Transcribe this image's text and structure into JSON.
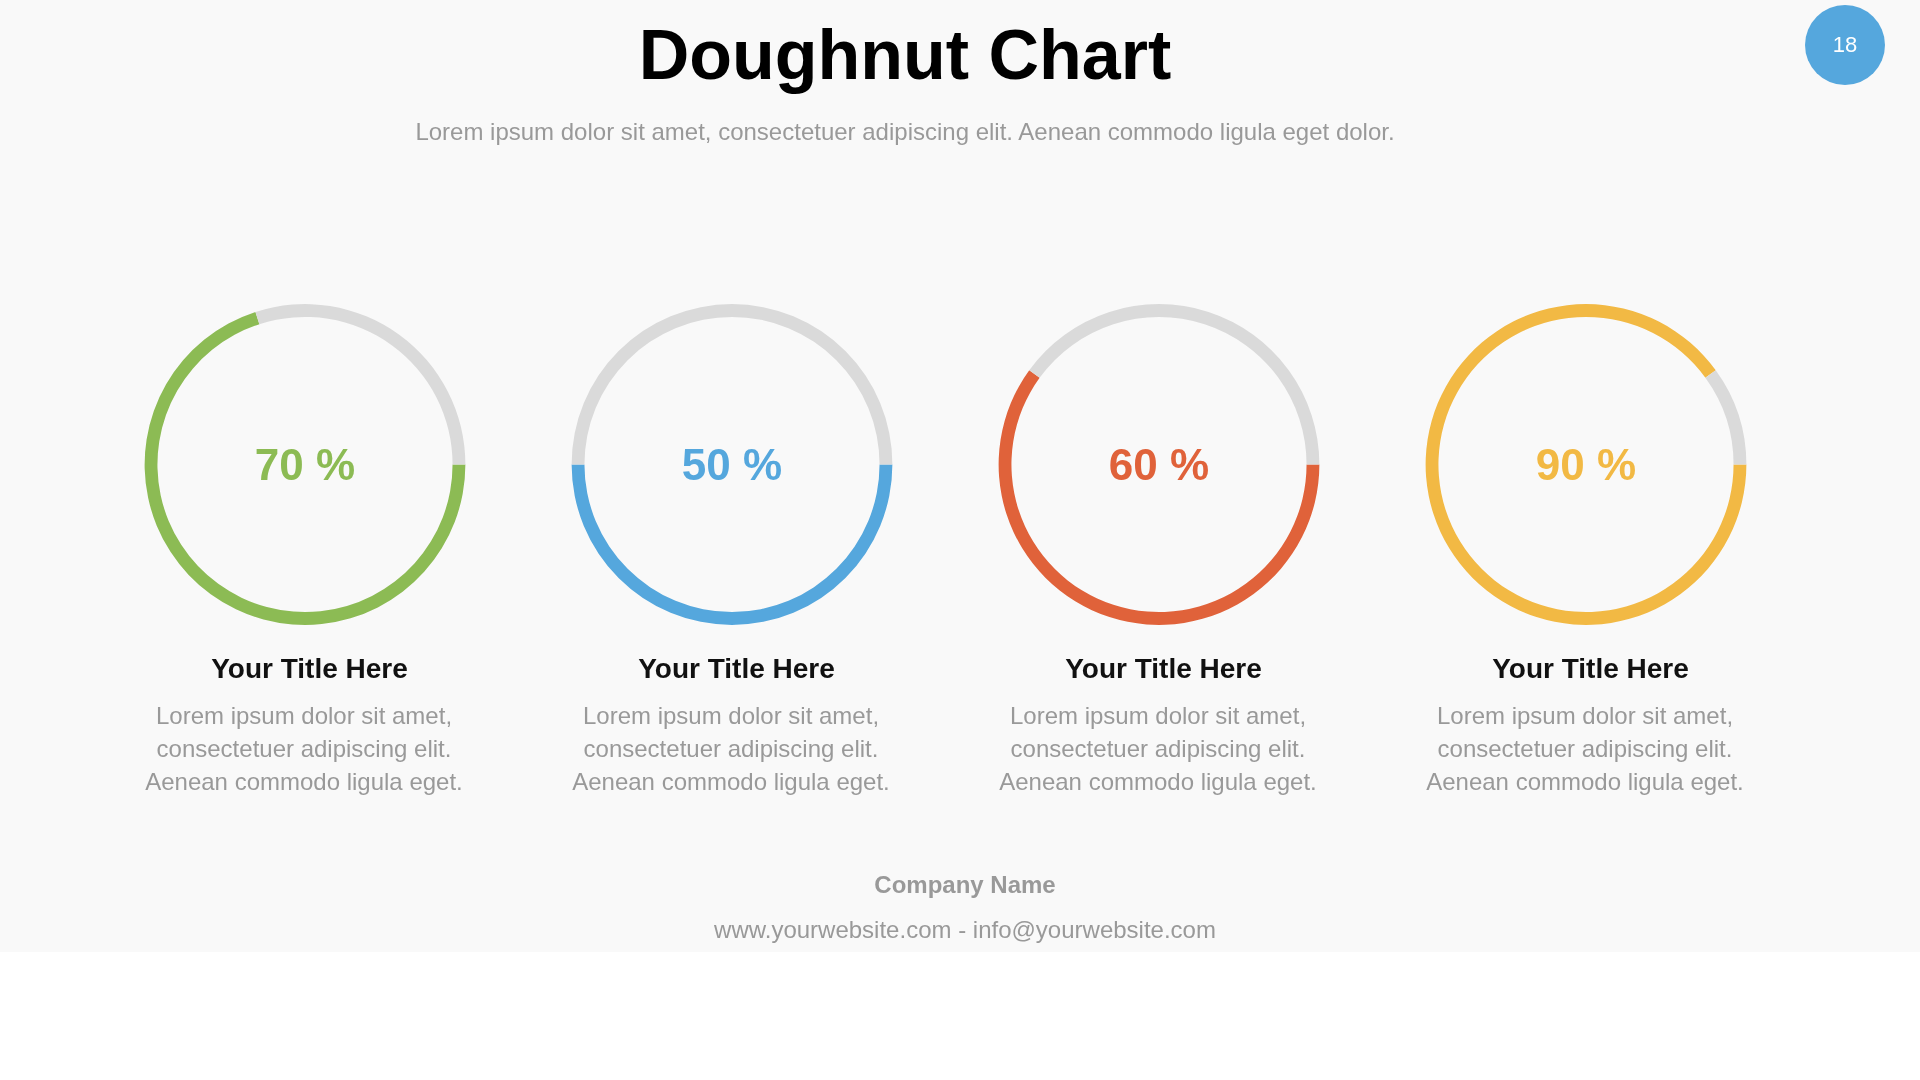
{
  "chart_data": [
    {
      "type": "donut",
      "title": "Your Title Here",
      "subtitle": "Lorem ipsum dolor sit amet, consectetuer adipiscing elit. Aenean commodo ligula eget.",
      "categories": [
        null,
        null
      ],
      "values": [
        70,
        30
      ],
      "colors": [
        "#8cbb54",
        "#dadada"
      ],
      "annotations": [
        "70 %",
        "Doughnut Chart",
        "Lorem ipsum dolor sit amet, consectetuer adipiscing elit. Aenean commodo ligula eget dolor.",
        "18"
      ]
    },
    {
      "type": "donut",
      "title": "Your Title Here",
      "subtitle": "Lorem ipsum dolor sit amet, consectetuer adipiscing elit. Aenean commodo ligula eget.",
      "categories": [
        null,
        null
      ],
      "values": [
        50,
        50
      ],
      "colors": [
        "#55a7dd",
        "#dadada"
      ],
      "annotations": [
        "50 %"
      ]
    },
    {
      "type": "donut",
      "title": "Your Title Here",
      "subtitle": "Lorem ipsum dolor sit amet, consectetuer adipiscing elit. Aenean commodo ligula eget.",
      "categories": [
        null,
        null
      ],
      "values": [
        60,
        40
      ],
      "colors": [
        "#e0623a",
        "#dadada"
      ],
      "annotations": [
        "60 %"
      ]
    },
    {
      "type": "donut",
      "title": "Your Title Here",
      "subtitle": "Lorem ipsum dolor sit amet, consectetuer adipiscing elit. Aenean commodo ligula eget.",
      "categories": [
        null,
        null
      ],
      "values": [
        90,
        10
      ],
      "colors": [
        "#f2b944",
        "#dadada"
      ],
      "annotations": [
        "90 %",
        "Company Name",
        "www.yourwebsite.com - info@yourwebsite.com"
      ]
    }
  ]
}
